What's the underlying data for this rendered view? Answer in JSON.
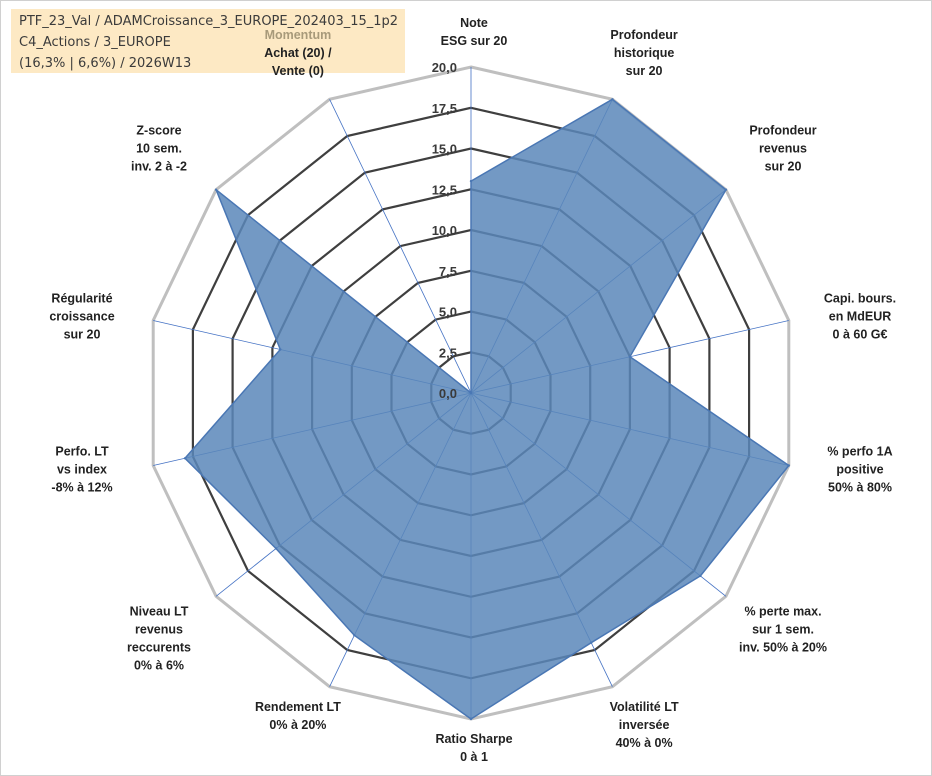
{
  "info": {
    "line1": "PTF_23_Val / ADAMCroissance_3_EUROPE_202403_15_1p2",
    "line2": "C4_Actions / 3_EUROPE",
    "line3": "(16,3% | 6,6%) / 2026W13"
  },
  "colors": {
    "fill": "#5b87ba",
    "stroke": "#4a77b4",
    "grid_outer": "#bfbfbf",
    "grid_inner": "#3f3f3f",
    "spoke": "#4472c4",
    "highlight_label": "#a89a7a"
  },
  "chart_data": {
    "type": "radar",
    "ylim": [
      0,
      20
    ],
    "tick_labels": [
      "0,0",
      "2,5",
      "5,0",
      "7,5",
      "10,0",
      "12,5",
      "15,0",
      "17,5",
      "20,0"
    ],
    "categories": [
      {
        "lines": [
          "Note",
          "ESG sur 20"
        ],
        "highlight": ""
      },
      {
        "lines": [
          "Profondeur",
          "historique",
          "sur 20"
        ],
        "highlight": ""
      },
      {
        "lines": [
          "Profondeur",
          "revenus",
          "sur 20"
        ],
        "highlight": ""
      },
      {
        "lines": [
          "Capi. bours.",
          "en MdEUR",
          "0 à 60 G€"
        ],
        "highlight": ""
      },
      {
        "lines": [
          "% perfo 1A",
          "positive",
          "50% à 80%"
        ],
        "highlight": ""
      },
      {
        "lines": [
          "% perte max.",
          "sur 1 sem.",
          "inv. 50% à 20%"
        ],
        "highlight": ""
      },
      {
        "lines": [
          "Volatilité LT",
          "inversée",
          "40% à 0%"
        ],
        "highlight": ""
      },
      {
        "lines": [
          "Ratio Sharpe",
          "0 à 1"
        ],
        "highlight": ""
      },
      {
        "lines": [
          "Rendement LT",
          "0% à 20%"
        ],
        "highlight": ""
      },
      {
        "lines": [
          "Niveau LT",
          "revenus",
          "reccurents",
          "0% à 6%"
        ],
        "highlight": ""
      },
      {
        "lines": [
          "Perfo. LT",
          "vs index",
          "-8% à 12%"
        ],
        "highlight": ""
      },
      {
        "lines": [
          "Régularité",
          "croissance",
          "sur 20"
        ],
        "highlight": ""
      },
      {
        "lines": [
          "Z-score",
          "10 sem.",
          "inv. 2 à -2"
        ],
        "highlight": ""
      },
      {
        "lines": [
          "Achat (20) /",
          "Vente (0)"
        ],
        "highlight": "Momentum"
      }
    ],
    "values": [
      13.0,
      20.0,
      20.0,
      10.0,
      20.0,
      18.0,
      17.0,
      20.0,
      16.5,
      15.3,
      18.0,
      12.0,
      20.0,
      0.0
    ]
  }
}
